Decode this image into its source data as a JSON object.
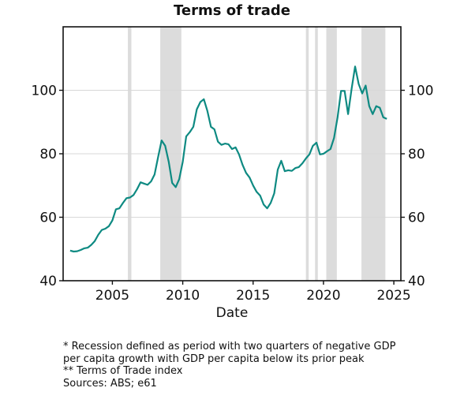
{
  "chart_data": {
    "type": "line",
    "title": "Terms of trade",
    "xlabel": "Date",
    "ylabel": "",
    "xlim": [
      2001.5,
      2025.5
    ],
    "ylim": [
      40,
      120
    ],
    "x_ticks": [
      "2005",
      "2010",
      "2015",
      "2020",
      "2025"
    ],
    "y_ticks": [
      "40",
      "60",
      "80",
      "100"
    ],
    "grid": "horizontal",
    "legend": "none",
    "colors": {
      "line": "#0e8a82",
      "recession": "#dcdcdc"
    },
    "recessions": [
      [
        2006.1,
        2006.35
      ],
      [
        2008.4,
        2009.9
      ],
      [
        2018.75,
        2018.95
      ],
      [
        2019.4,
        2019.6
      ],
      [
        2020.2,
        2020.95
      ],
      [
        2022.7,
        2024.4
      ]
    ],
    "series": [
      {
        "x": [
          2002.0,
          2002.25,
          2002.5,
          2002.75,
          2003.0,
          2003.25,
          2003.5,
          2003.75,
          2004.0,
          2004.25,
          2004.5,
          2004.75,
          2005.0,
          2005.25,
          2005.5,
          2005.75,
          2006.0,
          2006.25,
          2006.5,
          2006.75,
          2007.0,
          2007.25,
          2007.5,
          2007.75,
          2008.0,
          2008.25,
          2008.5,
          2008.75,
          2009.0,
          2009.25,
          2009.5,
          2009.75,
          2010.0,
          2010.25,
          2010.5,
          2010.75,
          2011.0,
          2011.25,
          2011.5,
          2011.75,
          2012.0,
          2012.25,
          2012.5,
          2012.75,
          2013.0,
          2013.25,
          2013.5,
          2013.75,
          2014.0,
          2014.25,
          2014.5,
          2014.75,
          2015.0,
          2015.25,
          2015.5,
          2015.75,
          2016.0,
          2016.25,
          2016.5,
          2016.75,
          2017.0,
          2017.25,
          2017.5,
          2017.75,
          2018.0,
          2018.25,
          2018.5,
          2018.75,
          2019.0,
          2019.25,
          2019.5,
          2019.75,
          2020.0,
          2020.25,
          2020.5,
          2020.75,
          2021.0,
          2021.25,
          2021.5,
          2021.75,
          2022.0,
          2022.25,
          2022.5,
          2022.75,
          2023.0,
          2023.25,
          2023.5,
          2023.75,
          2024.0,
          2024.25,
          2024.5
        ],
        "values": [
          49.5,
          49.2,
          49.3,
          49.7,
          50.2,
          50.4,
          51.3,
          52.5,
          54.5,
          56.0,
          56.4,
          57.2,
          59.0,
          62.5,
          62.8,
          64.5,
          66.0,
          66.2,
          67.0,
          68.8,
          71.0,
          70.6,
          70.2,
          71.3,
          73.5,
          79.0,
          84.2,
          82.5,
          77.5,
          70.8,
          69.5,
          72.0,
          77.5,
          85.5,
          86.8,
          88.5,
          94.0,
          96.3,
          97.2,
          93.5,
          88.5,
          87.7,
          83.8,
          82.8,
          83.2,
          83.0,
          81.5,
          82.0,
          79.8,
          76.5,
          74.0,
          72.5,
          70.0,
          68.0,
          66.8,
          64.0,
          62.8,
          64.5,
          67.5,
          75.0,
          77.8,
          74.5,
          74.8,
          74.6,
          75.5,
          75.8,
          77.0,
          78.5,
          79.8,
          82.5,
          83.5,
          79.8,
          80.0,
          80.8,
          81.5,
          85.0,
          91.5,
          99.8,
          99.8,
          92.5,
          100.5,
          107.5,
          102.0,
          99.0,
          101.5,
          95.0,
          92.5,
          95.0,
          94.5,
          91.5,
          91.0
        ]
      }
    ]
  },
  "notes": {
    "line1": "* Recession defined as period with two quarters of negative GDP",
    "line2": "per capita growth with GDP per capita below its prior peak",
    "line3": "** Terms of Trade index",
    "line4": "Sources: ABS; e61"
  }
}
